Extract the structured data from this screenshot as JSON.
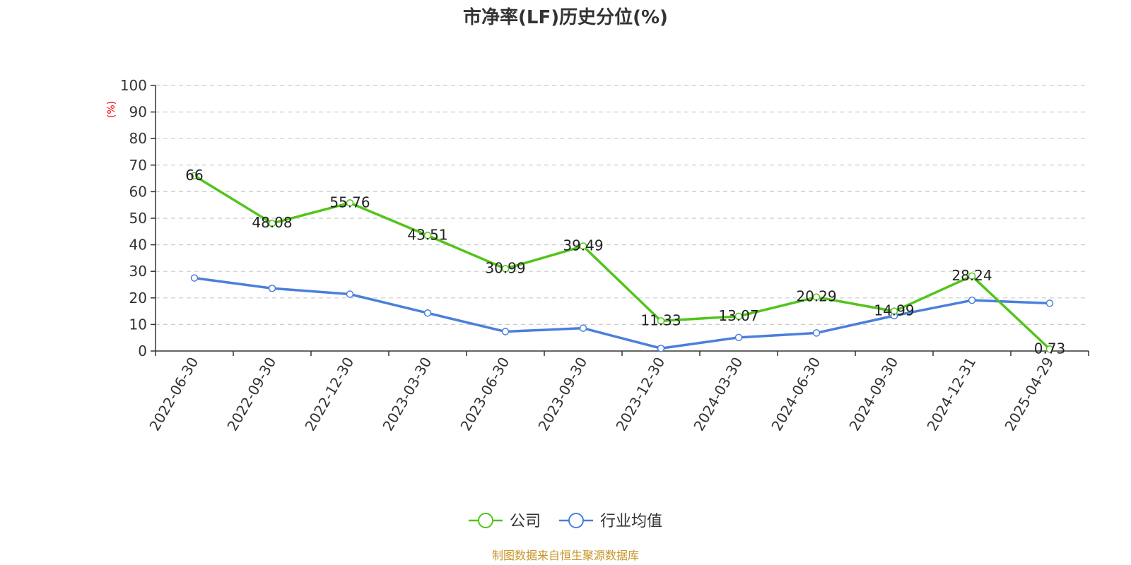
{
  "chart_data": {
    "type": "line",
    "title": "市净率(LF)历史分位(%)",
    "ylabel": "(%)",
    "xlabel": "",
    "ylim": [
      0,
      100
    ],
    "yticks": [
      0,
      10,
      20,
      30,
      40,
      50,
      60,
      70,
      80,
      90,
      100
    ],
    "grid": true,
    "legend_position": "bottom",
    "categories": [
      "2022-06-30",
      "2022-09-30",
      "2022-12-30",
      "2023-03-30",
      "2023-06-30",
      "2023-09-30",
      "2023-12-30",
      "2024-03-30",
      "2024-06-30",
      "2024-09-30",
      "2024-12-31",
      "2025-04-29"
    ],
    "series": [
      {
        "name": "公司",
        "color": "#52c41a",
        "values": [
          66,
          48.08,
          55.76,
          43.51,
          30.99,
          39.49,
          11.33,
          13.07,
          20.29,
          14.99,
          28.24,
          0.73
        ],
        "labels": [
          "66",
          "48.08",
          "55.76",
          "43.51",
          "30.99",
          "39.49",
          "11.33",
          "13.07",
          "20.29",
          "14.99",
          "28.24",
          "0.73"
        ]
      },
      {
        "name": "行业均值",
        "color": "#4a7fdc",
        "values": [
          27.5,
          23.6,
          21.4,
          14.3,
          7.3,
          8.6,
          1.0,
          5.1,
          6.8,
          13.3,
          19.1,
          18.0
        ]
      }
    ],
    "source": "制图数据来自恒生聚源数据库",
    "colors": {
      "unit_label": "#ff0000",
      "source_text": "#c8962a",
      "grid": "#cccccc",
      "axis": "#333333"
    }
  }
}
